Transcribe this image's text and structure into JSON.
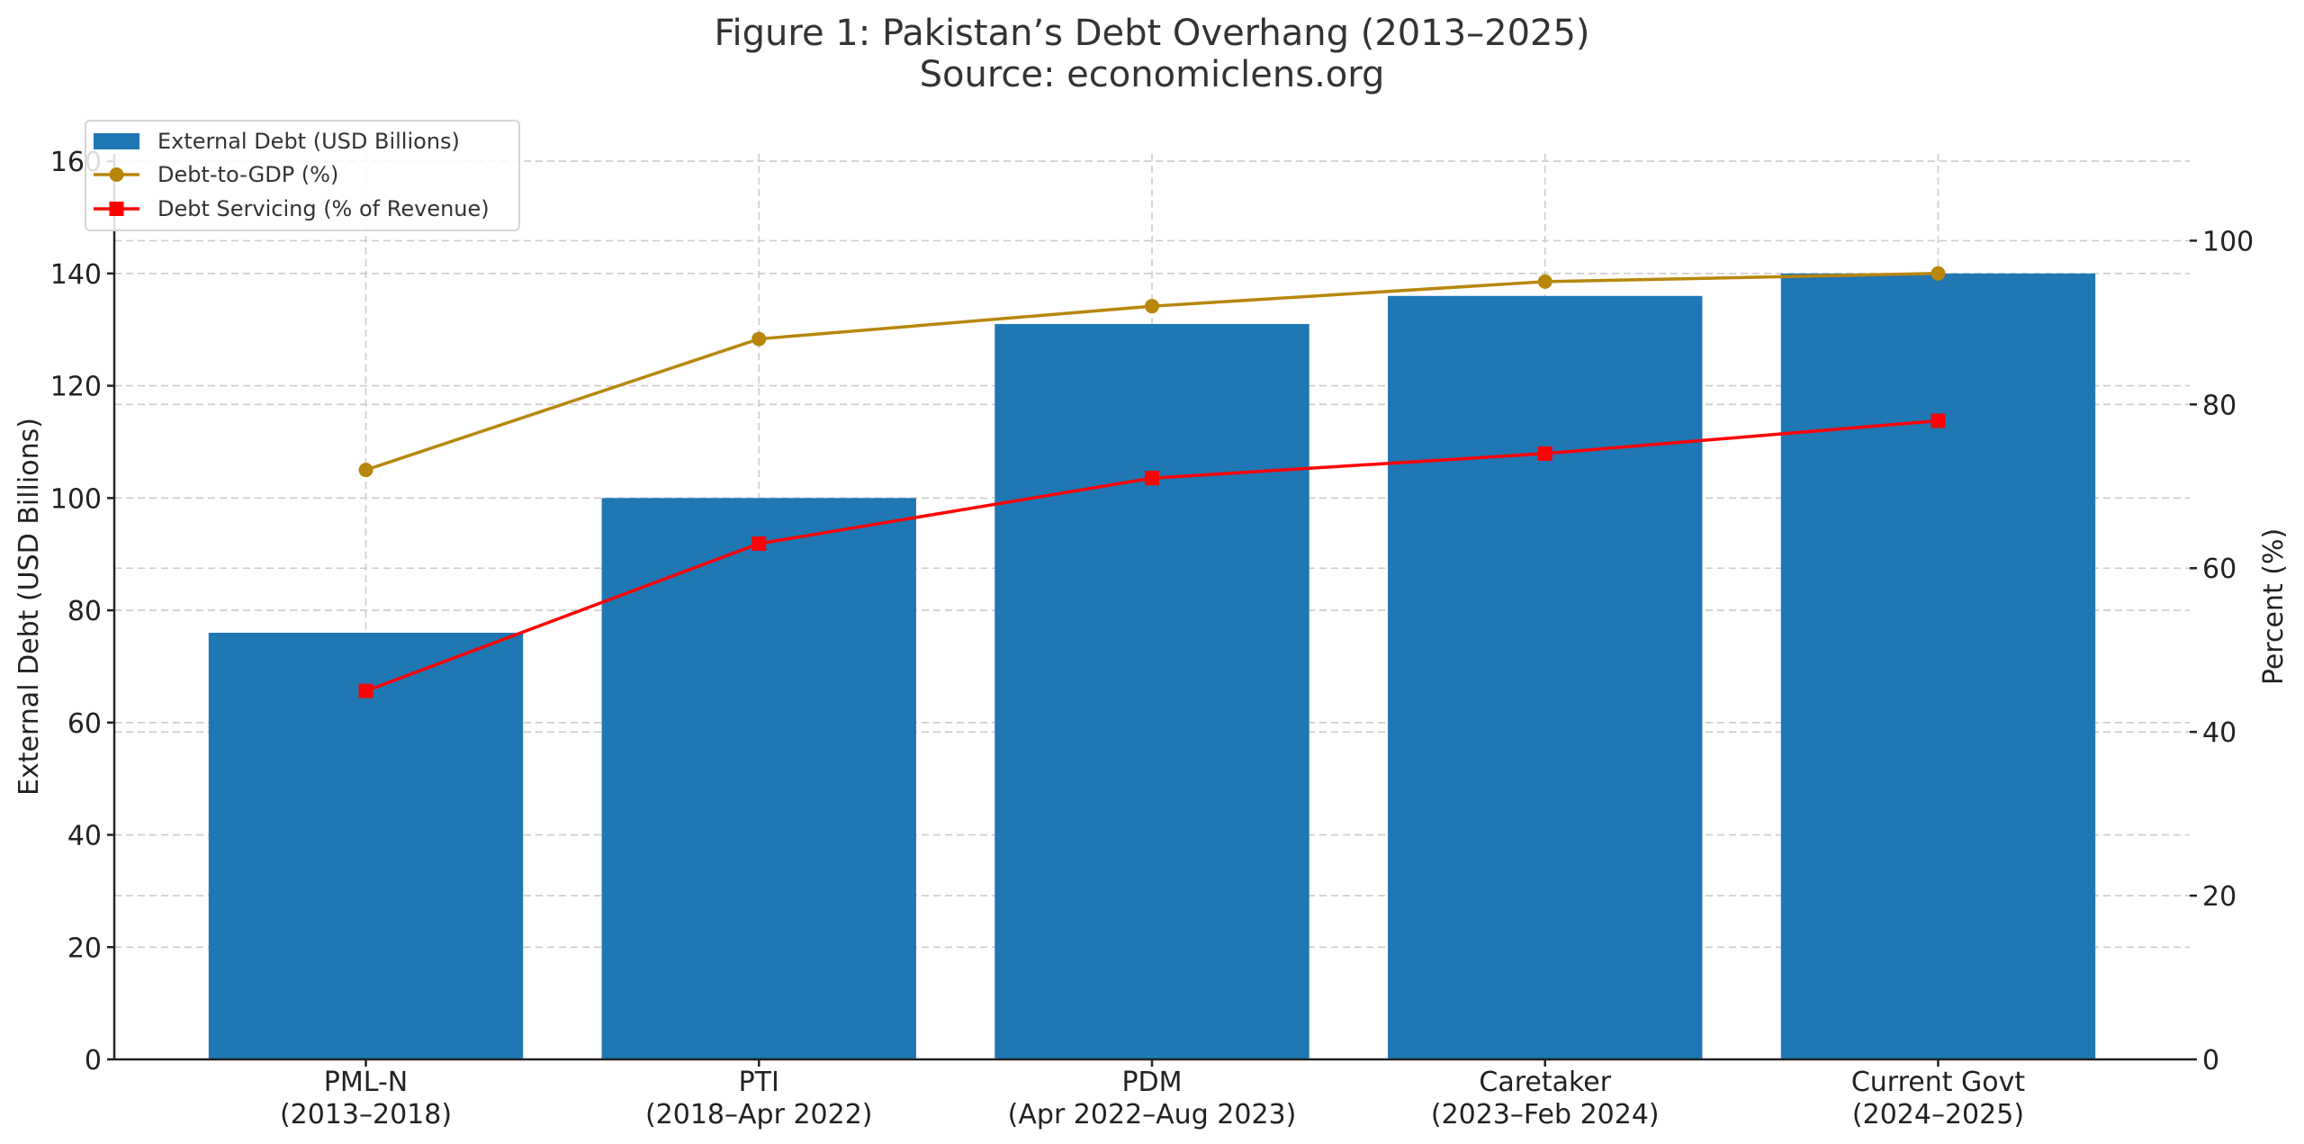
{
  "chart_data": {
    "type": "bar+line",
    "title": "Figure 1: Pakistan’s Debt Overhang (2013–2025)",
    "subtitle": "Source: economiclens.org",
    "categories": [
      [
        "PML-N",
        "(2013–2018)"
      ],
      [
        "PTI",
        "(2018–Apr 2022)"
      ],
      [
        "PDM",
        "(Apr 2022–Aug 2023)"
      ],
      [
        "Caretaker",
        "(2023–Feb 2024)"
      ],
      [
        "Current Govt",
        "(2024–2025)"
      ]
    ],
    "ylabel_left": "External Debt (USD Billions)",
    "ylabel_right": "Percent (%)",
    "ylim_left": [
      0,
      161.3
    ],
    "ylim_right": [
      0,
      110.6
    ],
    "yticks_left": [
      0,
      20,
      40,
      60,
      80,
      100,
      120,
      140,
      160
    ],
    "yticks_right": [
      0,
      20,
      40,
      60,
      80,
      100
    ],
    "grid": true,
    "legend_placement": "top-left",
    "series": [
      {
        "name": "External Debt (USD Billions)",
        "kind": "bar",
        "axis": "left",
        "color": "#1f77b4",
        "values": [
          76,
          100,
          131,
          136,
          140
        ]
      },
      {
        "name": "Debt-to-GDP (%)",
        "kind": "line",
        "marker": "circle",
        "axis": "right",
        "color": "#b8860b",
        "values": [
          72,
          88,
          92,
          95,
          96
        ]
      },
      {
        "name": "Debt Servicing (% of Revenue)",
        "kind": "line",
        "marker": "square",
        "axis": "right",
        "color": "#ff0000",
        "values": [
          45,
          63,
          71,
          74,
          78
        ]
      }
    ]
  }
}
